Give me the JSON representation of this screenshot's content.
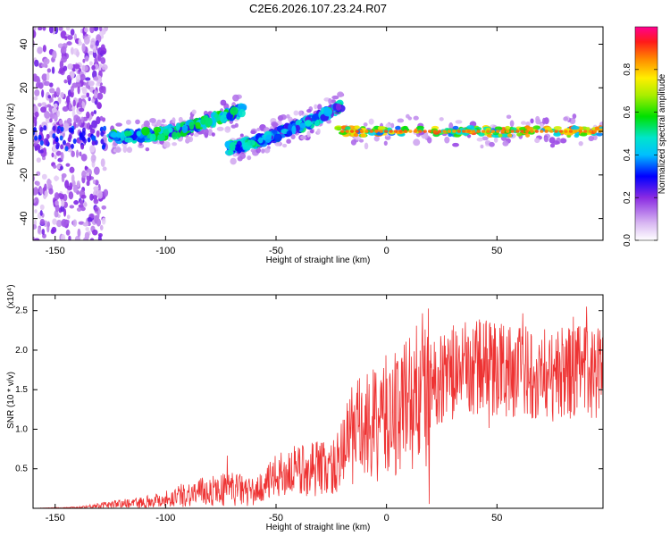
{
  "title": "C2E6.2026.107.23.24.R07",
  "chart_data": [
    {
      "type": "heatmap",
      "xlabel": "Height of straight line (km)",
      "ylabel": "Frequency (Hz)",
      "xlim": [
        -160,
        98
      ],
      "ylim": [
        -50,
        48
      ],
      "xticks": [
        "-150",
        "-100",
        "-50",
        "0",
        "50"
      ],
      "yticks": [
        "-40",
        "-20",
        "0",
        "20",
        "40"
      ],
      "colorbar": {
        "label": "Normalized spectral amplitude",
        "range": [
          0,
          1
        ],
        "ticks": [
          "0.0",
          "0.2",
          "0.4",
          "0.6",
          "0.8"
        ]
      },
      "features": [
        {
          "x": [
            -160,
            -127
          ],
          "freq_range": [
            -50,
            48
          ],
          "amplitude": 0.1
        },
        {
          "x": [
            -125,
            -65
          ],
          "freq": [
            -3,
            -2,
            0,
            5,
            10
          ],
          "amplitude": 0.4
        },
        {
          "x": [
            -72,
            -20
          ],
          "freq": [
            -8,
            -5,
            0,
            5,
            12
          ],
          "amplitude": 0.35
        },
        {
          "x": [
            -22,
            98
          ],
          "freq": [
            0,
            0
          ],
          "amplitude": 0.9
        }
      ]
    },
    {
      "type": "line",
      "xlabel": "Height of straight line (km)",
      "ylabel": "SNR (10 * v/v)",
      "y_multiplier": "(x10⁴)",
      "xlim": [
        -160,
        98
      ],
      "ylim": [
        0,
        2.7
      ],
      "xticks": [
        "-150",
        "-100",
        "-50",
        "0",
        "50"
      ],
      "yticks": [
        "0.5",
        "1.0",
        "1.5",
        "2.0",
        "2.5"
      ],
      "series": [
        {
          "color": "#ee3333",
          "x": [
            -160,
            -140,
            -125,
            -110,
            -100,
            -90,
            -80,
            -70,
            -60,
            -55,
            -50,
            -45,
            -40,
            -35,
            -30,
            -25,
            -20,
            -18,
            -15,
            -10,
            -5,
            0,
            5,
            10,
            15,
            20,
            25,
            30,
            35,
            40,
            45,
            50,
            55,
            60,
            65,
            70,
            75,
            80,
            85,
            90,
            98
          ],
          "y": [
            0.0,
            0.01,
            0.05,
            0.08,
            0.12,
            0.18,
            0.22,
            0.25,
            0.2,
            0.3,
            0.4,
            0.45,
            0.48,
            0.5,
            0.52,
            0.5,
            0.65,
            0.9,
            0.95,
            1.0,
            1.05,
            1.15,
            1.25,
            1.35,
            1.45,
            1.55,
            1.65,
            1.72,
            1.75,
            1.78,
            1.8,
            1.78,
            1.75,
            1.72,
            1.74,
            1.7,
            1.72,
            1.7,
            1.72,
            1.74,
            1.72
          ]
        }
      ]
    }
  ]
}
